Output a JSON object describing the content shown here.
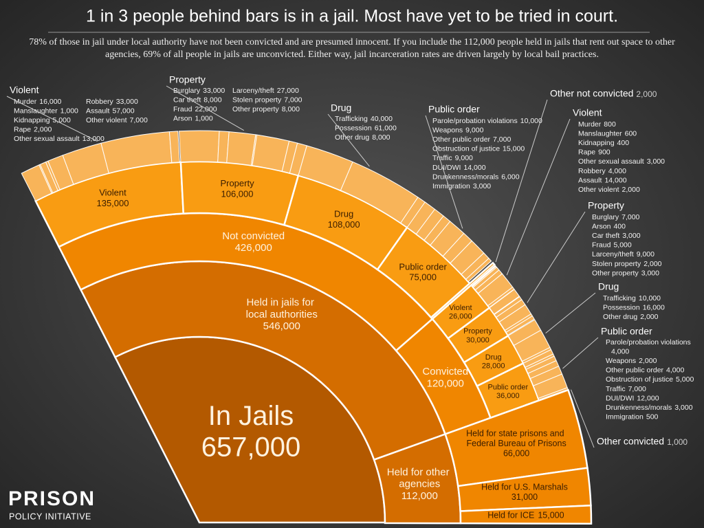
{
  "chart_data": {
    "type": "sunburst",
    "title": "1 in 3 people behind bars is in a jail. Most have yet to be tried in court.",
    "subtitle": "78% of those in jail under local authority have not been convicted and are presumed innocent. If you include the 112,000 people held in jails that rent out space to other agencies, 69% of all people in jails are unconvicted. Either way, jail incarceration rates are driven largely by local bail practices.",
    "ring_colors": [
      "#b35900",
      "#d46d00",
      "#f08600",
      "#f99c12",
      "#f8b459"
    ],
    "root": {
      "name": "In Jails",
      "value": 657000,
      "value_label": "657,000",
      "children": [
        {
          "name": "Held in jails for local authorities",
          "value": 546000,
          "value_label": "546,000",
          "children": [
            {
              "name": "Not convicted",
              "value": 426000,
              "value_label": "426,000",
              "children": [
                {
                  "name": "Violent",
                  "value": 135000,
                  "value_label": "135,000",
                  "children": [
                    {
                      "name": "Murder",
                      "value": 16000,
                      "value_label": "16,000"
                    },
                    {
                      "name": "Manslaughter",
                      "value": 1000,
                      "value_label": "1,000"
                    },
                    {
                      "name": "Kidnapping",
                      "value": 5000,
                      "value_label": "5,000"
                    },
                    {
                      "name": "Rape",
                      "value": 2000,
                      "value_label": "2,000"
                    },
                    {
                      "name": "Other sexual assault",
                      "value": 13000,
                      "value_label": "13,000"
                    },
                    {
                      "name": "Robbery",
                      "value": 33000,
                      "value_label": "33,000"
                    },
                    {
                      "name": "Assault",
                      "value": 57000,
                      "value_label": "57,000"
                    },
                    {
                      "name": "Other violent",
                      "value": 7000,
                      "value_label": "7,000"
                    }
                  ]
                },
                {
                  "name": "Property",
                  "value": 106000,
                  "value_label": "106,000",
                  "children": [
                    {
                      "name": "Burglary",
                      "value": 33000,
                      "value_label": "33,000"
                    },
                    {
                      "name": "Car theft",
                      "value": 8000,
                      "value_label": "8,000"
                    },
                    {
                      "name": "Fraud",
                      "value": 22000,
                      "value_label": "22,000"
                    },
                    {
                      "name": "Arson",
                      "value": 1000,
                      "value_label": "1,000"
                    },
                    {
                      "name": "Larceny/theft",
                      "value": 27000,
                      "value_label": "27,000"
                    },
                    {
                      "name": "Stolen property",
                      "value": 7000,
                      "value_label": "7,000"
                    },
                    {
                      "name": "Other property",
                      "value": 8000,
                      "value_label": "8,000"
                    }
                  ]
                },
                {
                  "name": "Drug",
                  "value": 108000,
                  "value_label": "108,000",
                  "children": [
                    {
                      "name": "Trafficking",
                      "value": 40000,
                      "value_label": "40,000"
                    },
                    {
                      "name": "Possession",
                      "value": 61000,
                      "value_label": "61,000"
                    },
                    {
                      "name": "Other drug",
                      "value": 8000,
                      "value_label": "8,000"
                    }
                  ]
                },
                {
                  "name": "Public order",
                  "value": 75000,
                  "value_label": "75,000",
                  "children": [
                    {
                      "name": "Parole/probation violations",
                      "value": 10000,
                      "value_label": "10,000"
                    },
                    {
                      "name": "Weapons",
                      "value": 9000,
                      "value_label": "9,000"
                    },
                    {
                      "name": "Other public order",
                      "value": 7000,
                      "value_label": "7,000"
                    },
                    {
                      "name": "Obstruction of justice",
                      "value": 15000,
                      "value_label": "15,000"
                    },
                    {
                      "name": "Traffic",
                      "value": 9000,
                      "value_label": "9,000"
                    },
                    {
                      "name": "DUI/DWI",
                      "value": 14000,
                      "value_label": "14,000"
                    },
                    {
                      "name": "Drunkenness/morals",
                      "value": 6000,
                      "value_label": "6,000"
                    },
                    {
                      "name": "Immigration",
                      "value": 3000,
                      "value_label": "3,000"
                    }
                  ]
                },
                {
                  "name": "Other not convicted",
                  "value": 2000,
                  "value_label": "2,000"
                }
              ]
            },
            {
              "name": "Convicted",
              "value": 120000,
              "value_label": "120,000",
              "children": [
                {
                  "name": "Violent",
                  "value": 26000,
                  "value_label": "26,000",
                  "children": [
                    {
                      "name": "Murder",
                      "value": 800,
                      "value_label": "800"
                    },
                    {
                      "name": "Manslaughter",
                      "value": 600,
                      "value_label": "600"
                    },
                    {
                      "name": "Kidnapping",
                      "value": 400,
                      "value_label": "400"
                    },
                    {
                      "name": "Rape",
                      "value": 900,
                      "value_label": "900"
                    },
                    {
                      "name": "Other sexual assault",
                      "value": 3000,
                      "value_label": "3,000"
                    },
                    {
                      "name": "Robbery",
                      "value": 4000,
                      "value_label": "4,000"
                    },
                    {
                      "name": "Assault",
                      "value": 14000,
                      "value_label": "14,000"
                    },
                    {
                      "name": "Other violent",
                      "value": 2000,
                      "value_label": "2,000"
                    }
                  ]
                },
                {
                  "name": "Property",
                  "value": 30000,
                  "value_label": "30,000",
                  "children": [
                    {
                      "name": "Burglary",
                      "value": 7000,
                      "value_label": "7,000"
                    },
                    {
                      "name": "Arson",
                      "value": 400,
                      "value_label": "400"
                    },
                    {
                      "name": "Car theft",
                      "value": 3000,
                      "value_label": "3,000"
                    },
                    {
                      "name": "Fraud",
                      "value": 5000,
                      "value_label": "5,000"
                    },
                    {
                      "name": "Larceny/theft",
                      "value": 9000,
                      "value_label": "9,000"
                    },
                    {
                      "name": "Stolen property",
                      "value": 2000,
                      "value_label": "2,000"
                    },
                    {
                      "name": "Other property",
                      "value": 3000,
                      "value_label": "3,000"
                    }
                  ]
                },
                {
                  "name": "Drug",
                  "value": 28000,
                  "value_label": "28,000",
                  "children": [
                    {
                      "name": "Trafficking",
                      "value": 10000,
                      "value_label": "10,000"
                    },
                    {
                      "name": "Possession",
                      "value": 16000,
                      "value_label": "16,000"
                    },
                    {
                      "name": "Other drug",
                      "value": 2000,
                      "value_label": "2,000"
                    }
                  ]
                },
                {
                  "name": "Public order",
                  "value": 36000,
                  "value_label": "36,000",
                  "children": [
                    {
                      "name": "Parole/probation violations",
                      "value": 4000,
                      "value_label": "4,000"
                    },
                    {
                      "name": "Weapons",
                      "value": 2000,
                      "value_label": "2,000"
                    },
                    {
                      "name": "Other public order",
                      "value": 4000,
                      "value_label": "4,000"
                    },
                    {
                      "name": "Obstruction of justice",
                      "value": 5000,
                      "value_label": "5,000"
                    },
                    {
                      "name": "Traffic",
                      "value": 7000,
                      "value_label": "7,000"
                    },
                    {
                      "name": "DUI/DWI",
                      "value": 12000,
                      "value_label": "12,000"
                    },
                    {
                      "name": "Drunkenness/morals",
                      "value": 3000,
                      "value_label": "3,000"
                    },
                    {
                      "name": "Immigration",
                      "value": 500,
                      "value_label": "500"
                    }
                  ]
                },
                {
                  "name": "Other convicted",
                  "value": 1000,
                  "value_label": "1,000"
                }
              ]
            }
          ]
        },
        {
          "name": "Held for other agencies",
          "value": 112000,
          "value_label": "112,000",
          "children": [
            {
              "name": "Held for state prisons and Federal Bureau of Prisons",
              "value": 66000,
              "value_label": "66,000"
            },
            {
              "name": "Held for U.S. Marshals",
              "value": 31000,
              "value_label": "31,000"
            },
            {
              "name": "Held for ICE",
              "value": 15000,
              "value_label": "15,000"
            }
          ]
        }
      ]
    }
  },
  "logo": {
    "line1": "PRISON",
    "line2": "POLICY INITIATIVE"
  }
}
